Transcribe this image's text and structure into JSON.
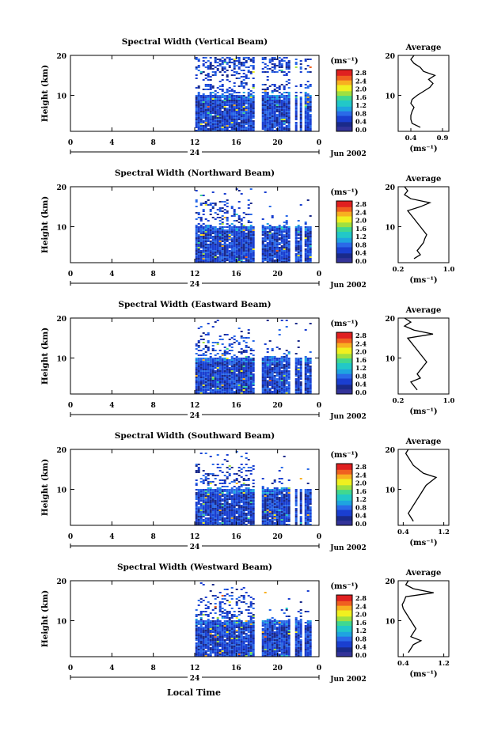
{
  "figure": {
    "xlabel_bottom": "Local Time",
    "date_label": "Jun 2002",
    "day_label": "24",
    "x_ticks": [
      "0",
      "4",
      "8",
      "12",
      "16",
      "20",
      "0"
    ],
    "ylabel": "Height (km)",
    "y_ticks": [
      "20",
      "10"
    ],
    "colorbar_unit": "(ms⁻¹)",
    "colorbar_ticks": [
      "2.8",
      "2.4",
      "2.0",
      "1.6",
      "1.2",
      "0.8",
      "0.4",
      "0.0"
    ],
    "colors": [
      "#333399",
      "#1a2a8a",
      "#1a3fd0",
      "#2a6ae8",
      "#1fa4e0",
      "#22c8c8",
      "#40d890",
      "#a0e040",
      "#f0f020",
      "#f8b020",
      "#f06020",
      "#e02020"
    ]
  },
  "chart_data": [
    {
      "type": "heatmap",
      "title": "Spectral Width (Vertical Beam)",
      "xlabel": "Local Time",
      "ylabel": "Height (km)",
      "xlim": [
        0,
        24
      ],
      "ylim": [
        1,
        20
      ],
      "colorbar_range": [
        0.0,
        3.0
      ],
      "data_gaps_hours": [
        [
          17.7,
          18.3
        ],
        [
          21.2,
          21.5
        ],
        [
          22.2,
          22.5
        ]
      ],
      "profile": {
        "title": "Average",
        "xlabel": "(ms⁻¹)",
        "x_ticks": [
          "0.4",
          "0.9"
        ],
        "xlim": [
          0.2,
          1.0
        ],
        "heights": [
          2,
          3,
          4,
          5,
          6,
          7,
          8,
          9,
          10,
          11,
          12,
          13,
          14,
          15,
          16,
          17,
          18,
          19,
          20
        ],
        "values": [
          0.55,
          0.42,
          0.4,
          0.4,
          0.42,
          0.45,
          0.4,
          0.42,
          0.5,
          0.6,
          0.7,
          0.75,
          0.68,
          0.78,
          0.6,
          0.55,
          0.45,
          0.4,
          0.45
        ]
      }
    },
    {
      "type": "heatmap",
      "title": "Spectral Width (Northward Beam)",
      "xlabel": "Local Time",
      "ylabel": "Height (km)",
      "xlim": [
        0,
        24
      ],
      "ylim": [
        1,
        20
      ],
      "colorbar_range": [
        0.0,
        3.0
      ],
      "data_gaps_hours": [
        [
          17.7,
          18.3
        ],
        [
          21.2,
          21.5
        ],
        [
          22.2,
          22.5
        ]
      ],
      "profile": {
        "title": "Average",
        "xlabel": "(ms⁻¹)",
        "x_ticks": [
          "0.2",
          "1.0"
        ],
        "xlim": [
          0.2,
          1.0
        ],
        "heights": [
          2,
          3,
          4,
          5,
          6,
          7,
          8,
          9,
          10,
          11,
          12,
          13,
          14,
          15,
          16,
          17,
          18,
          19,
          20
        ],
        "values": [
          0.45,
          0.55,
          0.5,
          0.55,
          0.6,
          0.62,
          0.65,
          0.6,
          0.55,
          0.5,
          0.45,
          0.4,
          0.35,
          0.55,
          0.7,
          0.4,
          0.3,
          0.35,
          0.3
        ]
      }
    },
    {
      "type": "heatmap",
      "title": "Spectral Width (Eastward Beam)",
      "xlabel": "Local Time",
      "ylabel": "Height (km)",
      "xlim": [
        0,
        24
      ],
      "ylim": [
        1,
        20
      ],
      "colorbar_range": [
        0.0,
        3.0
      ],
      "data_gaps_hours": [
        [
          17.7,
          18.3
        ],
        [
          21.2,
          21.5
        ],
        [
          22.2,
          22.5
        ]
      ],
      "profile": {
        "title": "Average",
        "xlabel": "(ms⁻¹)",
        "x_ticks": [
          "0.2",
          "1.0"
        ],
        "xlim": [
          0.2,
          1.0
        ],
        "heights": [
          2,
          3,
          4,
          5,
          6,
          7,
          8,
          9,
          10,
          11,
          12,
          13,
          14,
          15,
          16,
          17,
          18,
          19,
          20
        ],
        "values": [
          0.5,
          0.45,
          0.4,
          0.55,
          0.5,
          0.55,
          0.6,
          0.65,
          0.6,
          0.55,
          0.5,
          0.45,
          0.4,
          0.35,
          0.75,
          0.45,
          0.3,
          0.4,
          0.3
        ]
      }
    },
    {
      "type": "heatmap",
      "title": "Spectral Width (Southward Beam)",
      "xlabel": "Local Time",
      "ylabel": "Height (km)",
      "xlim": [
        0,
        24
      ],
      "ylim": [
        1,
        20
      ],
      "colorbar_range": [
        0.0,
        3.0
      ],
      "data_gaps_hours": [
        [
          17.7,
          18.3
        ],
        [
          21.2,
          21.5
        ],
        [
          22.2,
          22.5
        ]
      ],
      "profile": {
        "title": "Average",
        "xlabel": "(ms⁻¹)",
        "x_ticks": [
          "0.4",
          "1.2"
        ],
        "xlim": [
          0.3,
          1.3
        ],
        "heights": [
          2,
          3,
          4,
          5,
          6,
          7,
          8,
          9,
          10,
          11,
          12,
          13,
          14,
          15,
          16,
          17,
          18,
          19,
          20
        ],
        "values": [
          0.6,
          0.55,
          0.5,
          0.55,
          0.6,
          0.65,
          0.7,
          0.75,
          0.8,
          0.85,
          0.95,
          1.05,
          0.8,
          0.7,
          0.6,
          0.55,
          0.5,
          0.45,
          0.5
        ]
      }
    },
    {
      "type": "heatmap",
      "title": "Spectral Width (Westward Beam)",
      "xlabel": "Local Time",
      "ylabel": "Height (km)",
      "xlim": [
        0,
        24
      ],
      "ylim": [
        1,
        20
      ],
      "colorbar_range": [
        0.0,
        3.0
      ],
      "data_gaps_hours": [
        [
          17.7,
          18.3
        ],
        [
          21.2,
          21.5
        ],
        [
          22.2,
          22.5
        ]
      ],
      "profile": {
        "title": "Average",
        "xlabel": "(ms⁻¹)",
        "x_ticks": [
          "0.4",
          "1.2"
        ],
        "xlim": [
          0.3,
          1.3
        ],
        "heights": [
          2,
          3,
          4,
          5,
          6,
          7,
          8,
          9,
          10,
          11,
          12,
          13,
          14,
          15,
          16,
          17,
          18,
          19,
          20
        ],
        "values": [
          0.5,
          0.55,
          0.6,
          0.75,
          0.55,
          0.6,
          0.65,
          0.6,
          0.55,
          0.5,
          0.45,
          0.4,
          0.38,
          0.42,
          0.45,
          1.0,
          0.6,
          0.45,
          0.5
        ]
      }
    }
  ]
}
